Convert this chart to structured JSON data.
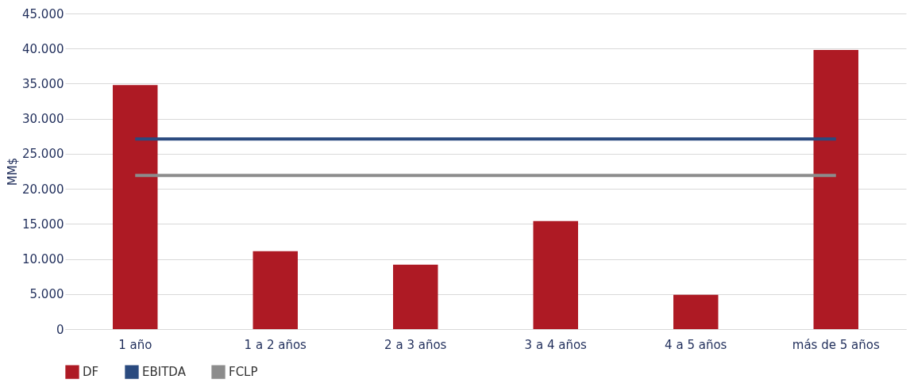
{
  "chart_data": {
    "type": "bar",
    "ylabel": "MM$",
    "categories": [
      "1 año",
      "1 a 2 años",
      "2 a 3 años",
      "3 a 4 años",
      "4 a 5 años",
      "más de 5 años"
    ],
    "series": [
      {
        "name": "DF",
        "color": "#ae1a24",
        "values": [
          34800,
          11100,
          9200,
          15400,
          4900,
          39800
        ]
      },
      {
        "name": "EBITDA",
        "color": "#2a4a7f",
        "type": "line",
        "values": [
          27100,
          27100,
          27100,
          27100,
          27100,
          27100
        ]
      },
      {
        "name": "FCLP",
        "color": "#8c8c8c",
        "type": "line",
        "values": [
          21900,
          21900,
          21900,
          21900,
          21900,
          21900
        ]
      }
    ],
    "ylim": [
      0,
      45000
    ],
    "yticks": [
      {
        "value": 0,
        "label": "0"
      },
      {
        "value": 5000,
        "label": "5.000"
      },
      {
        "value": 10000,
        "label": "10.000"
      },
      {
        "value": 15000,
        "label": "15.000"
      },
      {
        "value": 20000,
        "label": "20.000"
      },
      {
        "value": 25000,
        "label": "25.000"
      },
      {
        "value": 30000,
        "label": "30.000"
      },
      {
        "value": 35000,
        "label": "35.000"
      },
      {
        "value": 40000,
        "label": "40.000"
      },
      {
        "value": 45000,
        "label": "45.000"
      }
    ],
    "grid": "y",
    "legend": "bottom"
  }
}
